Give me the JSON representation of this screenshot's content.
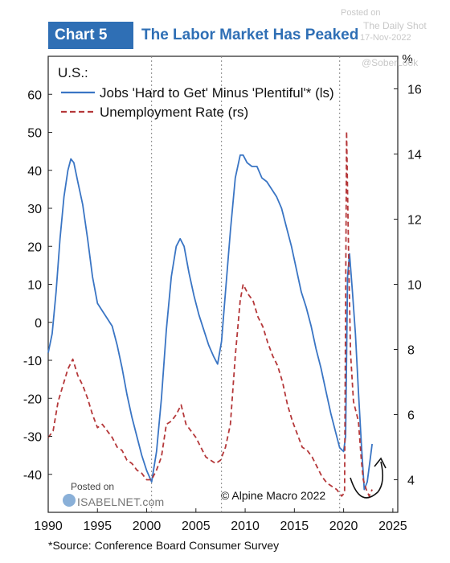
{
  "header": {
    "chart_number": "Chart 5",
    "title": "The Labor Market Has Peaked"
  },
  "watermark": {
    "posted_on": "Posted on",
    "site": "The Daily Shot",
    "date": "17-Nov-2022",
    "handle": "@SoberLook"
  },
  "isabelnet": {
    "posted_on": "Posted on",
    "name": "ISABELNET.com"
  },
  "copyright": "© Alpine Macro 2022",
  "source": "*Source: Conference Board Consumer Survey",
  "colors": {
    "jobs_series": "#3a75c4",
    "unemployment_series": "#b5383a",
    "header_box": "#2f6fb5"
  },
  "chart_data": {
    "type": "line",
    "region_label": "U.S.:",
    "legend_position": "top-left",
    "xlim": [
      1990,
      2025.5
    ],
    "x_ticks": [
      "1990",
      "1995",
      "2000",
      "2005",
      "2010",
      "2015",
      "2020",
      "2025"
    ],
    "y_left": {
      "lim": [
        -50,
        70
      ],
      "ticks": [
        "60",
        "50",
        "40",
        "30",
        "20",
        "10",
        "0",
        "-10",
        "-20",
        "-30",
        "-40"
      ]
    },
    "y_right": {
      "unit": "%",
      "lim": [
        3,
        17
      ],
      "ticks": [
        "16",
        "14",
        "12",
        "10",
        "8",
        "6",
        "4"
      ]
    },
    "vertical_lines": [
      2000.5,
      2007.6,
      2019.6
    ],
    "grid": false,
    "series": [
      {
        "name": "Jobs 'Hard to Get' Minus 'Plentiful'* (ls)",
        "axis": "left",
        "style": "solid",
        "points": [
          [
            1990.0,
            -8
          ],
          [
            1990.4,
            -3
          ],
          [
            1990.8,
            8
          ],
          [
            1991.2,
            22
          ],
          [
            1991.6,
            33
          ],
          [
            1992.0,
            40
          ],
          [
            1992.3,
            43
          ],
          [
            1992.6,
            42
          ],
          [
            1993.0,
            37
          ],
          [
            1993.5,
            31
          ],
          [
            1994.0,
            22
          ],
          [
            1994.5,
            12
          ],
          [
            1995.0,
            5
          ],
          [
            1995.5,
            3
          ],
          [
            1996.0,
            1
          ],
          [
            1996.5,
            -1
          ],
          [
            1997.0,
            -6
          ],
          [
            1997.5,
            -12
          ],
          [
            1998.0,
            -19
          ],
          [
            1998.5,
            -25
          ],
          [
            1999.0,
            -30
          ],
          [
            1999.5,
            -35
          ],
          [
            2000.0,
            -39
          ],
          [
            2000.5,
            -42
          ],
          [
            2001.0,
            -34
          ],
          [
            2001.5,
            -20
          ],
          [
            2002.0,
            -2
          ],
          [
            2002.5,
            12
          ],
          [
            2003.0,
            20
          ],
          [
            2003.4,
            22
          ],
          [
            2003.8,
            20
          ],
          [
            2004.3,
            13
          ],
          [
            2004.8,
            7
          ],
          [
            2005.3,
            2
          ],
          [
            2005.8,
            -2
          ],
          [
            2006.3,
            -6
          ],
          [
            2006.8,
            -9
          ],
          [
            2007.2,
            -11
          ],
          [
            2007.6,
            -5
          ],
          [
            2008.0,
            8
          ],
          [
            2008.5,
            24
          ],
          [
            2009.0,
            38
          ],
          [
            2009.5,
            44
          ],
          [
            2009.8,
            44
          ],
          [
            2010.2,
            42
          ],
          [
            2010.7,
            41
          ],
          [
            2011.2,
            41
          ],
          [
            2011.7,
            38
          ],
          [
            2012.2,
            37
          ],
          [
            2012.7,
            35
          ],
          [
            2013.2,
            33
          ],
          [
            2013.7,
            30
          ],
          [
            2014.2,
            25
          ],
          [
            2014.7,
            20
          ],
          [
            2015.2,
            14
          ],
          [
            2015.7,
            8
          ],
          [
            2016.2,
            4
          ],
          [
            2016.7,
            -1
          ],
          [
            2017.2,
            -7
          ],
          [
            2017.7,
            -12
          ],
          [
            2018.2,
            -18
          ],
          [
            2018.7,
            -24
          ],
          [
            2019.2,
            -29
          ],
          [
            2019.6,
            -33
          ],
          [
            2020.0,
            -34
          ],
          [
            2020.2,
            -30
          ],
          [
            2020.4,
            12
          ],
          [
            2020.6,
            18
          ],
          [
            2020.9,
            8
          ],
          [
            2021.2,
            -3
          ],
          [
            2021.5,
            -18
          ],
          [
            2021.8,
            -32
          ],
          [
            2022.1,
            -44
          ],
          [
            2022.4,
            -42
          ],
          [
            2022.7,
            -36
          ],
          [
            2022.9,
            -32
          ]
        ]
      },
      {
        "name": "Unemployment Rate (rs)",
        "axis": "right",
        "style": "dashed",
        "points": [
          [
            1990.0,
            5.3
          ],
          [
            1990.5,
            5.5
          ],
          [
            1991.0,
            6.4
          ],
          [
            1991.5,
            6.9
          ],
          [
            1992.0,
            7.4
          ],
          [
            1992.5,
            7.7
          ],
          [
            1993.0,
            7.2
          ],
          [
            1993.5,
            6.9
          ],
          [
            1994.0,
            6.5
          ],
          [
            1994.5,
            6.0
          ],
          [
            1995.0,
            5.6
          ],
          [
            1995.5,
            5.7
          ],
          [
            1996.0,
            5.5
          ],
          [
            1996.5,
            5.3
          ],
          [
            1997.0,
            5.0
          ],
          [
            1997.5,
            4.9
          ],
          [
            1998.0,
            4.6
          ],
          [
            1998.5,
            4.5
          ],
          [
            1999.0,
            4.3
          ],
          [
            1999.5,
            4.2
          ],
          [
            2000.0,
            4.0
          ],
          [
            2000.5,
            4.0
          ],
          [
            2001.0,
            4.3
          ],
          [
            2001.5,
            4.7
          ],
          [
            2002.0,
            5.7
          ],
          [
            2002.5,
            5.8
          ],
          [
            2003.0,
            6.0
          ],
          [
            2003.5,
            6.3
          ],
          [
            2004.0,
            5.7
          ],
          [
            2004.5,
            5.5
          ],
          [
            2005.0,
            5.3
          ],
          [
            2005.5,
            5.0
          ],
          [
            2006.0,
            4.7
          ],
          [
            2006.5,
            4.6
          ],
          [
            2007.0,
            4.5
          ],
          [
            2007.5,
            4.6
          ],
          [
            2008.0,
            5.0
          ],
          [
            2008.5,
            5.7
          ],
          [
            2009.0,
            7.8
          ],
          [
            2009.5,
            9.5
          ],
          [
            2009.8,
            10.0
          ],
          [
            2010.3,
            9.7
          ],
          [
            2010.8,
            9.5
          ],
          [
            2011.3,
            9.0
          ],
          [
            2011.8,
            8.7
          ],
          [
            2012.3,
            8.2
          ],
          [
            2012.8,
            7.8
          ],
          [
            2013.3,
            7.5
          ],
          [
            2013.8,
            7.0
          ],
          [
            2014.3,
            6.3
          ],
          [
            2014.8,
            5.8
          ],
          [
            2015.3,
            5.4
          ],
          [
            2015.8,
            5.0
          ],
          [
            2016.3,
            4.9
          ],
          [
            2016.8,
            4.7
          ],
          [
            2017.3,
            4.4
          ],
          [
            2017.8,
            4.1
          ],
          [
            2018.3,
            3.9
          ],
          [
            2018.8,
            3.8
          ],
          [
            2019.3,
            3.7
          ],
          [
            2019.8,
            3.5
          ],
          [
            2020.1,
            3.6
          ],
          [
            2020.3,
            14.7
          ],
          [
            2020.5,
            11.1
          ],
          [
            2020.7,
            7.9
          ],
          [
            2021.0,
            6.4
          ],
          [
            2021.5,
            5.8
          ],
          [
            2021.8,
            4.6
          ],
          [
            2022.0,
            4.0
          ],
          [
            2022.3,
            3.7
          ],
          [
            2022.6,
            3.5
          ],
          [
            2022.9,
            3.7
          ]
        ]
      }
    ]
  }
}
